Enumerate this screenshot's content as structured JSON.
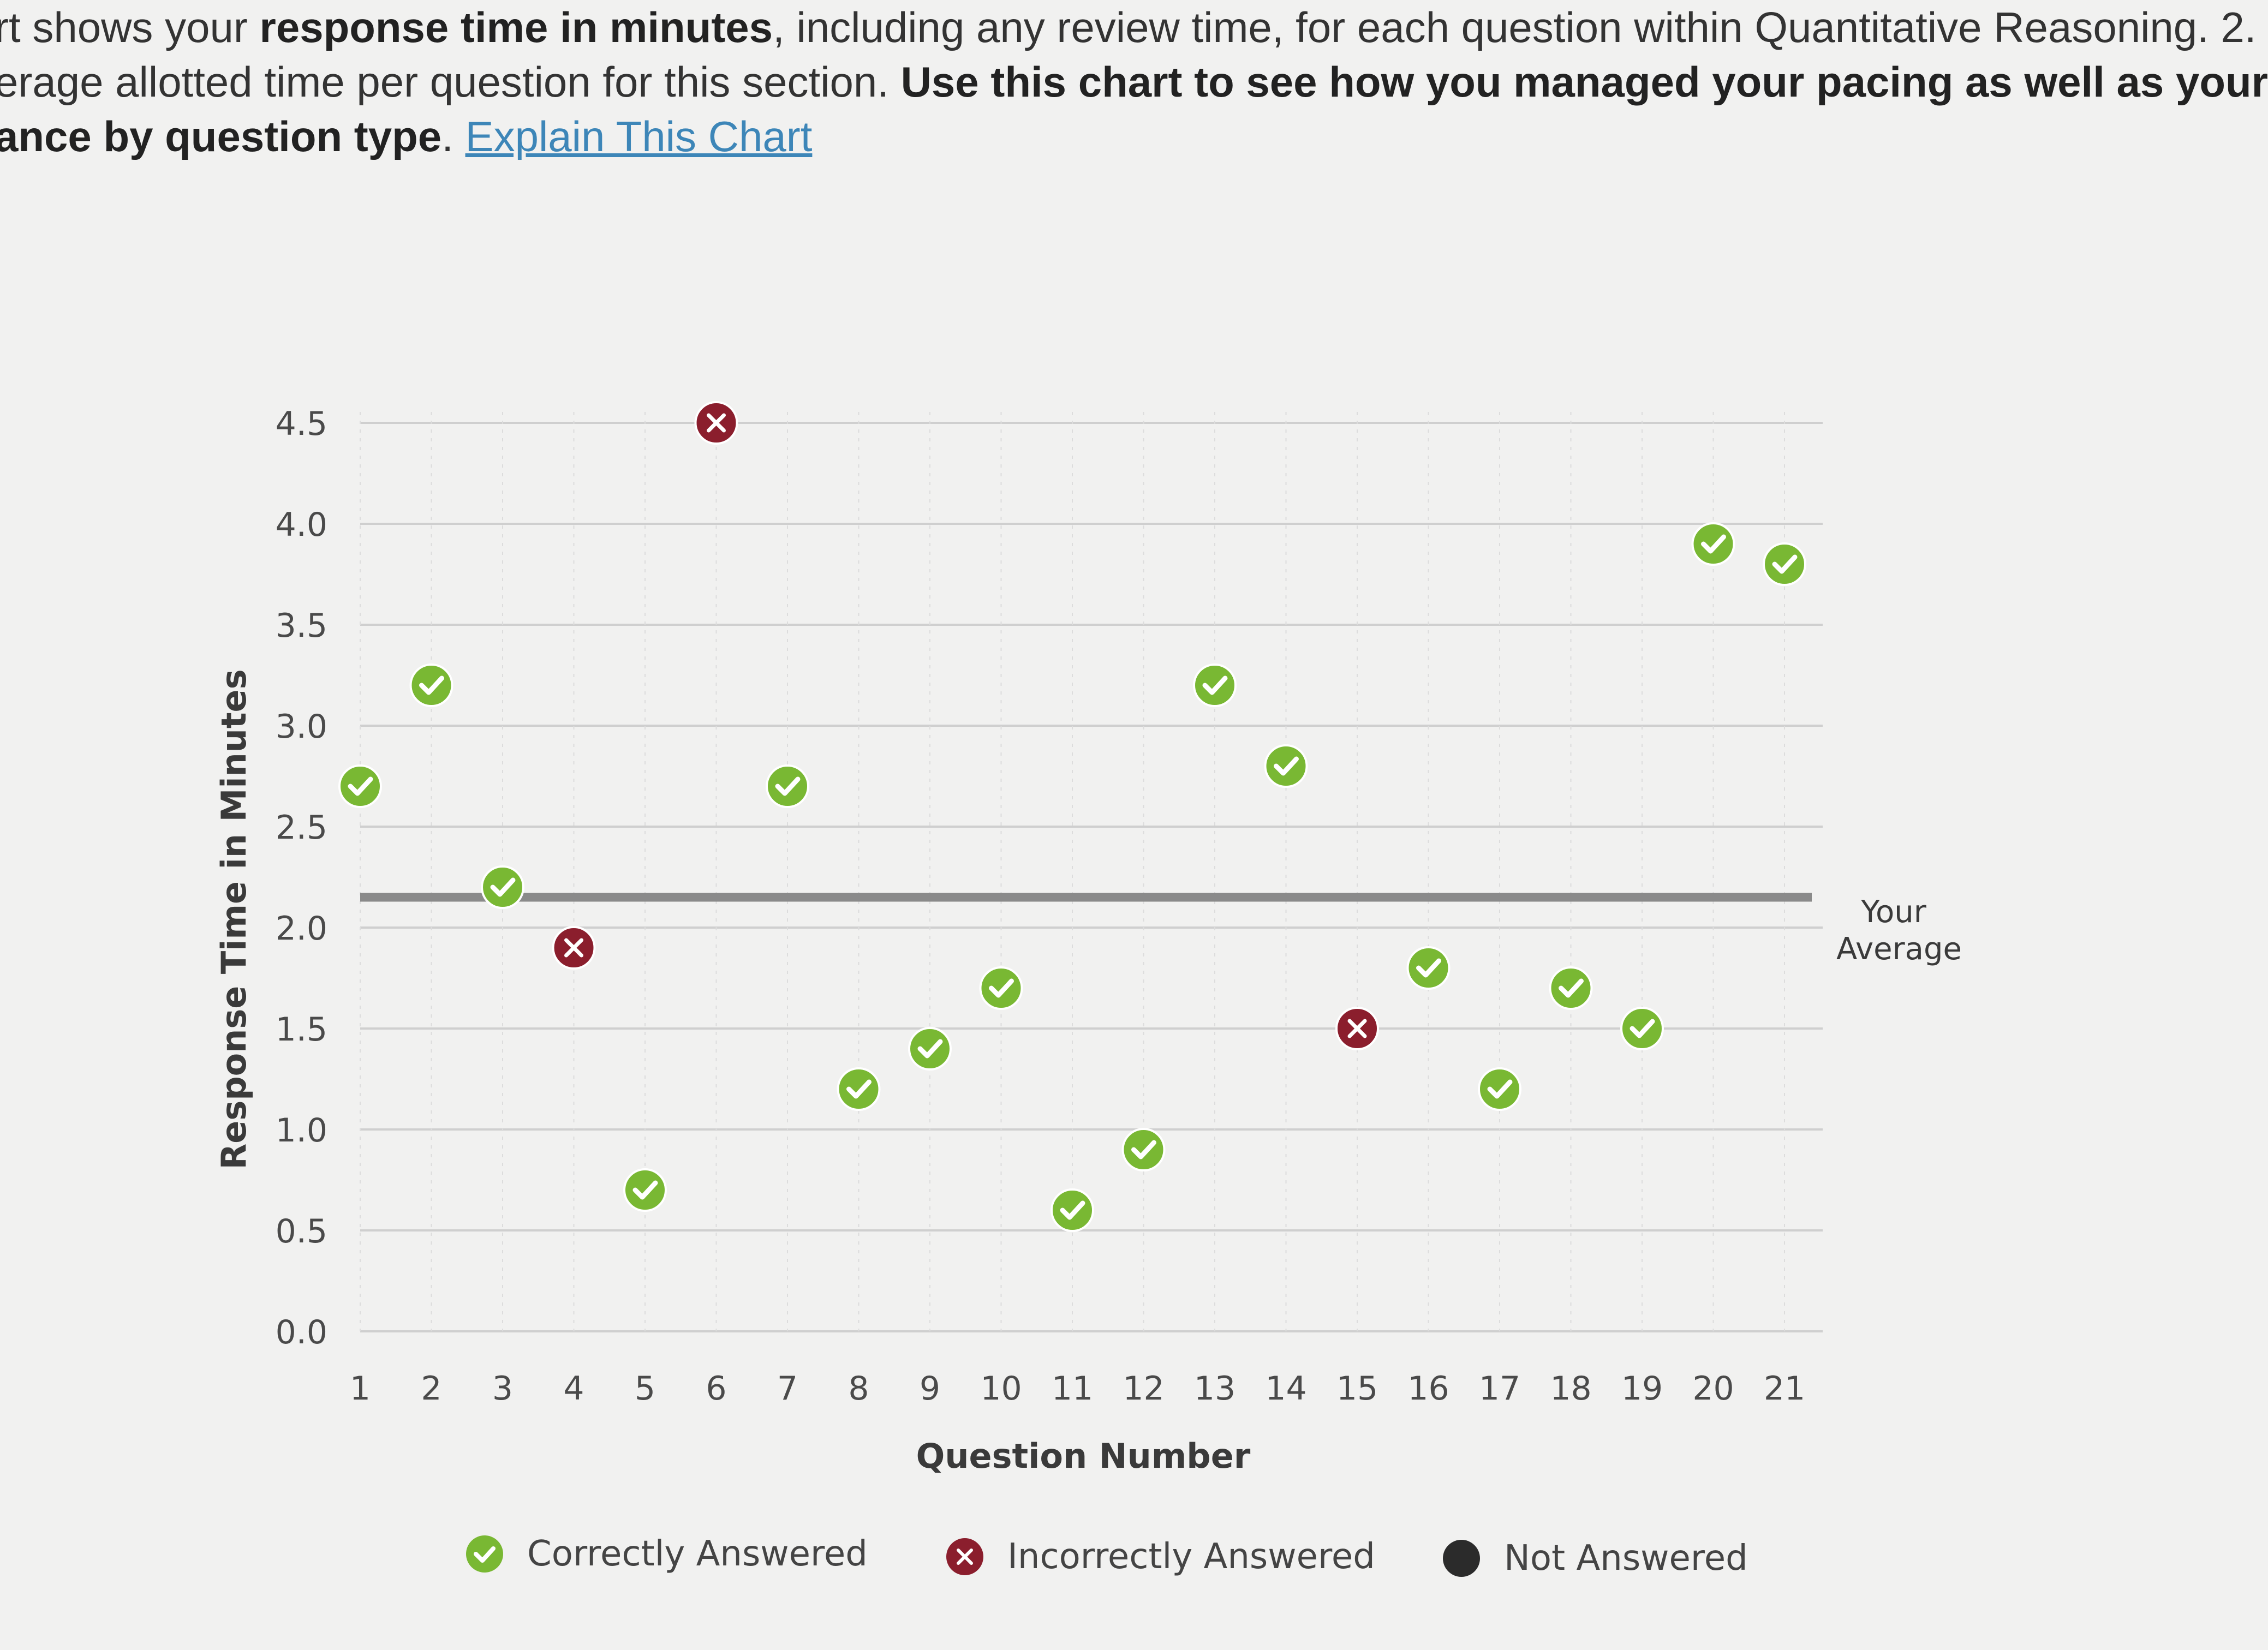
{
  "intro": {
    "line1_pre": "rt shows your ",
    "line1_bold": "response time in minutes",
    "line1_post": ", including any review time, for each question within Quantitative Reasoning. 2.",
    "line2_pre": "erage allotted time per question for this section. ",
    "line2_bold": "Use this chart to see how you managed your pacing as well as your",
    "line3_bold": "ance by question type",
    "line3_post": ". ",
    "link": "Explain This Chart"
  },
  "legend": {
    "correct": "Correctly Answered",
    "incorrect": "Incorrectly Answered",
    "not_answered": "Not Answered"
  },
  "colors": {
    "correct": "#79b833",
    "incorrect": "#8b1e2d",
    "not_answered": "#2b2b2b",
    "average_line": "#8a8a8a",
    "grid": "#cfcfcf"
  },
  "chart_data": {
    "type": "scatter",
    "xlabel": "Question Number",
    "ylabel": "Response Time in Minutes",
    "ylim": [
      0,
      4.5
    ],
    "yticks": [
      "0.0",
      "0.5",
      "1.0",
      "1.5",
      "2.0",
      "2.5",
      "3.0",
      "3.5",
      "4.0",
      "4.5"
    ],
    "xticks": [
      "1",
      "2",
      "3",
      "4",
      "5",
      "6",
      "7",
      "8",
      "9",
      "10",
      "11",
      "12",
      "13",
      "14",
      "15",
      "16",
      "17",
      "18",
      "19",
      "20",
      "21"
    ],
    "average": {
      "label_line1": "Your",
      "label_line2": "Average",
      "value": 2.15
    },
    "grid": true,
    "legend_position": "bottom",
    "points": [
      {
        "q": 1,
        "time": 2.7,
        "status": "correct"
      },
      {
        "q": 2,
        "time": 3.2,
        "status": "correct"
      },
      {
        "q": 3,
        "time": 2.2,
        "status": "correct"
      },
      {
        "q": 4,
        "time": 1.9,
        "status": "incorrect"
      },
      {
        "q": 5,
        "time": 0.7,
        "status": "correct"
      },
      {
        "q": 6,
        "time": 4.5,
        "status": "incorrect"
      },
      {
        "q": 7,
        "time": 2.7,
        "status": "correct"
      },
      {
        "q": 8,
        "time": 1.2,
        "status": "correct"
      },
      {
        "q": 9,
        "time": 1.4,
        "status": "correct"
      },
      {
        "q": 10,
        "time": 1.7,
        "status": "correct"
      },
      {
        "q": 11,
        "time": 0.6,
        "status": "correct"
      },
      {
        "q": 12,
        "time": 0.9,
        "status": "correct"
      },
      {
        "q": 13,
        "time": 3.2,
        "status": "correct"
      },
      {
        "q": 14,
        "time": 2.8,
        "status": "correct"
      },
      {
        "q": 15,
        "time": 1.5,
        "status": "incorrect"
      },
      {
        "q": 16,
        "time": 1.8,
        "status": "correct"
      },
      {
        "q": 17,
        "time": 1.2,
        "status": "correct"
      },
      {
        "q": 18,
        "time": 1.7,
        "status": "correct"
      },
      {
        "q": 19,
        "time": 1.5,
        "status": "correct"
      },
      {
        "q": 20,
        "time": 3.9,
        "status": "correct"
      },
      {
        "q": 21,
        "time": 3.8,
        "status": "correct"
      }
    ]
  }
}
